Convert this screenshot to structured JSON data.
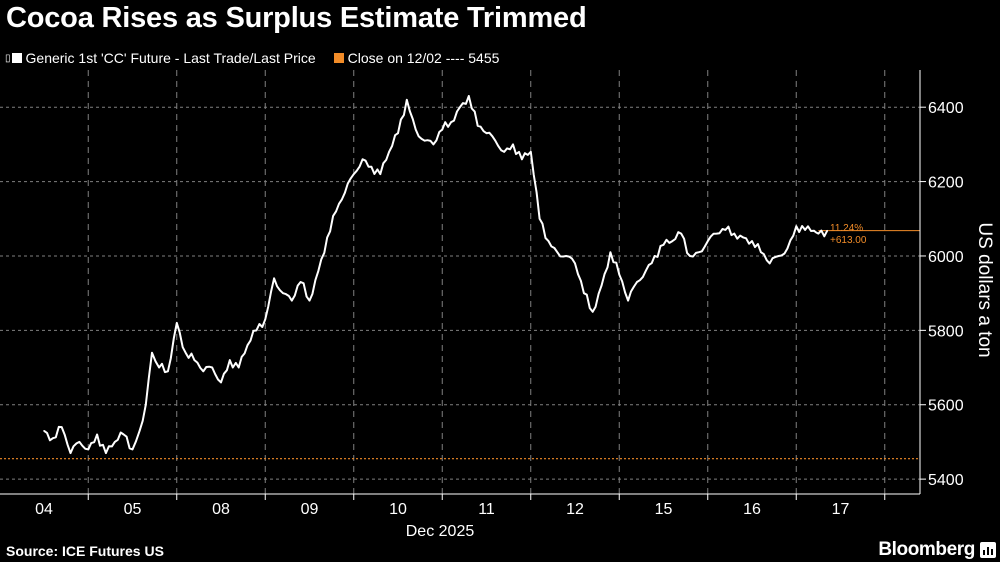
{
  "title": "Cocoa Rises as Surplus Estimate Trimmed",
  "legend": {
    "prefix": "▯",
    "series_label": "Generic 1st 'CC' Future - Last Trade/Last Price",
    "reference_label": "Close on 12/02 ---- 5455"
  },
  "annotation": {
    "percent": "11.24%",
    "change": "+613.00"
  },
  "y_axis_title": "US dollars a ton",
  "x_axis_title": "Dec 2025",
  "source": "Source: ICE Futures US",
  "brand": "Bloomberg",
  "colors": {
    "background": "#000000",
    "series": "#ffffff",
    "reference": "#f28c28",
    "grid": "#808080",
    "text": "#ffffff"
  },
  "chart_data": {
    "type": "line",
    "title": "Cocoa Rises as Surplus Estimate Trimmed",
    "xlabel": "Dec 2025",
    "ylabel": "US dollars a ton",
    "x_ticks": [
      "04",
      "05",
      "08",
      "09",
      "10",
      "11",
      "12",
      "15",
      "16",
      "17"
    ],
    "y_ticks": [
      5400,
      5600,
      5800,
      6000,
      6200,
      6400
    ],
    "ylim": [
      5360,
      6500
    ],
    "grid": true,
    "legend_position": "top-left",
    "reference_line": {
      "name": "Close on 12/02",
      "value": 5455
    },
    "last_value": 6068,
    "series": [
      {
        "name": "Generic 1st 'CC' Future - Last Trade/Last Price",
        "x": [
          0.0,
          0.1,
          0.2,
          0.3,
          0.4,
          0.5,
          0.6,
          0.7,
          0.8,
          0.9,
          1.0,
          1.08,
          1.15,
          1.22,
          1.3,
          1.4,
          1.5,
          1.6,
          1.7,
          1.8,
          1.9,
          2.0,
          2.1,
          2.2,
          2.3,
          2.4,
          2.5,
          2.6,
          2.7,
          2.8,
          2.9,
          3.0,
          3.1,
          3.2,
          3.3,
          3.4,
          3.5,
          3.6,
          3.7,
          3.8,
          3.9,
          4.0,
          4.1,
          4.2,
          4.3,
          4.4,
          4.5,
          4.6,
          4.7,
          4.8,
          4.9,
          5.0,
          5.1,
          5.2,
          5.3,
          5.4,
          5.5,
          5.6,
          5.7,
          5.8,
          5.9,
          6.0,
          6.1,
          6.2,
          6.3,
          6.4,
          6.5,
          6.6,
          6.7,
          6.8,
          6.9,
          7.0,
          7.1,
          7.2,
          7.3,
          7.4,
          7.5,
          7.6,
          7.7,
          7.8,
          7.9,
          8.0,
          8.1,
          8.2,
          8.3,
          8.4,
          8.5,
          8.6,
          8.7,
          8.75,
          8.85
        ],
        "values": [
          5530,
          5510,
          5540,
          5470,
          5500,
          5480,
          5520,
          5470,
          5500,
          5520,
          5480,
          5530,
          5600,
          5740,
          5700,
          5690,
          5820,
          5740,
          5720,
          5690,
          5700,
          5660,
          5720,
          5700,
          5760,
          5800,
          5830,
          5940,
          5900,
          5880,
          5930,
          5880,
          5960,
          6050,
          6120,
          6170,
          6220,
          6260,
          6240,
          6220,
          6280,
          6330,
          6420,
          6340,
          6310,
          6300,
          6340,
          6360,
          6400,
          6430,
          6350,
          6330,
          6310,
          6280,
          6300,
          6260,
          6280,
          6100,
          6040,
          6010,
          6000,
          5980,
          5900,
          5850,
          5920,
          6010,
          5950,
          5880,
          5930,
          5960,
          6000,
          6030,
          6040,
          6060,
          6000,
          6010,
          6040,
          6060,
          6070,
          6060,
          6050,
          6040,
          6010,
          5980,
          6000,
          6020,
          6080,
          6070,
          6068,
          6060,
          6068
        ]
      }
    ]
  }
}
